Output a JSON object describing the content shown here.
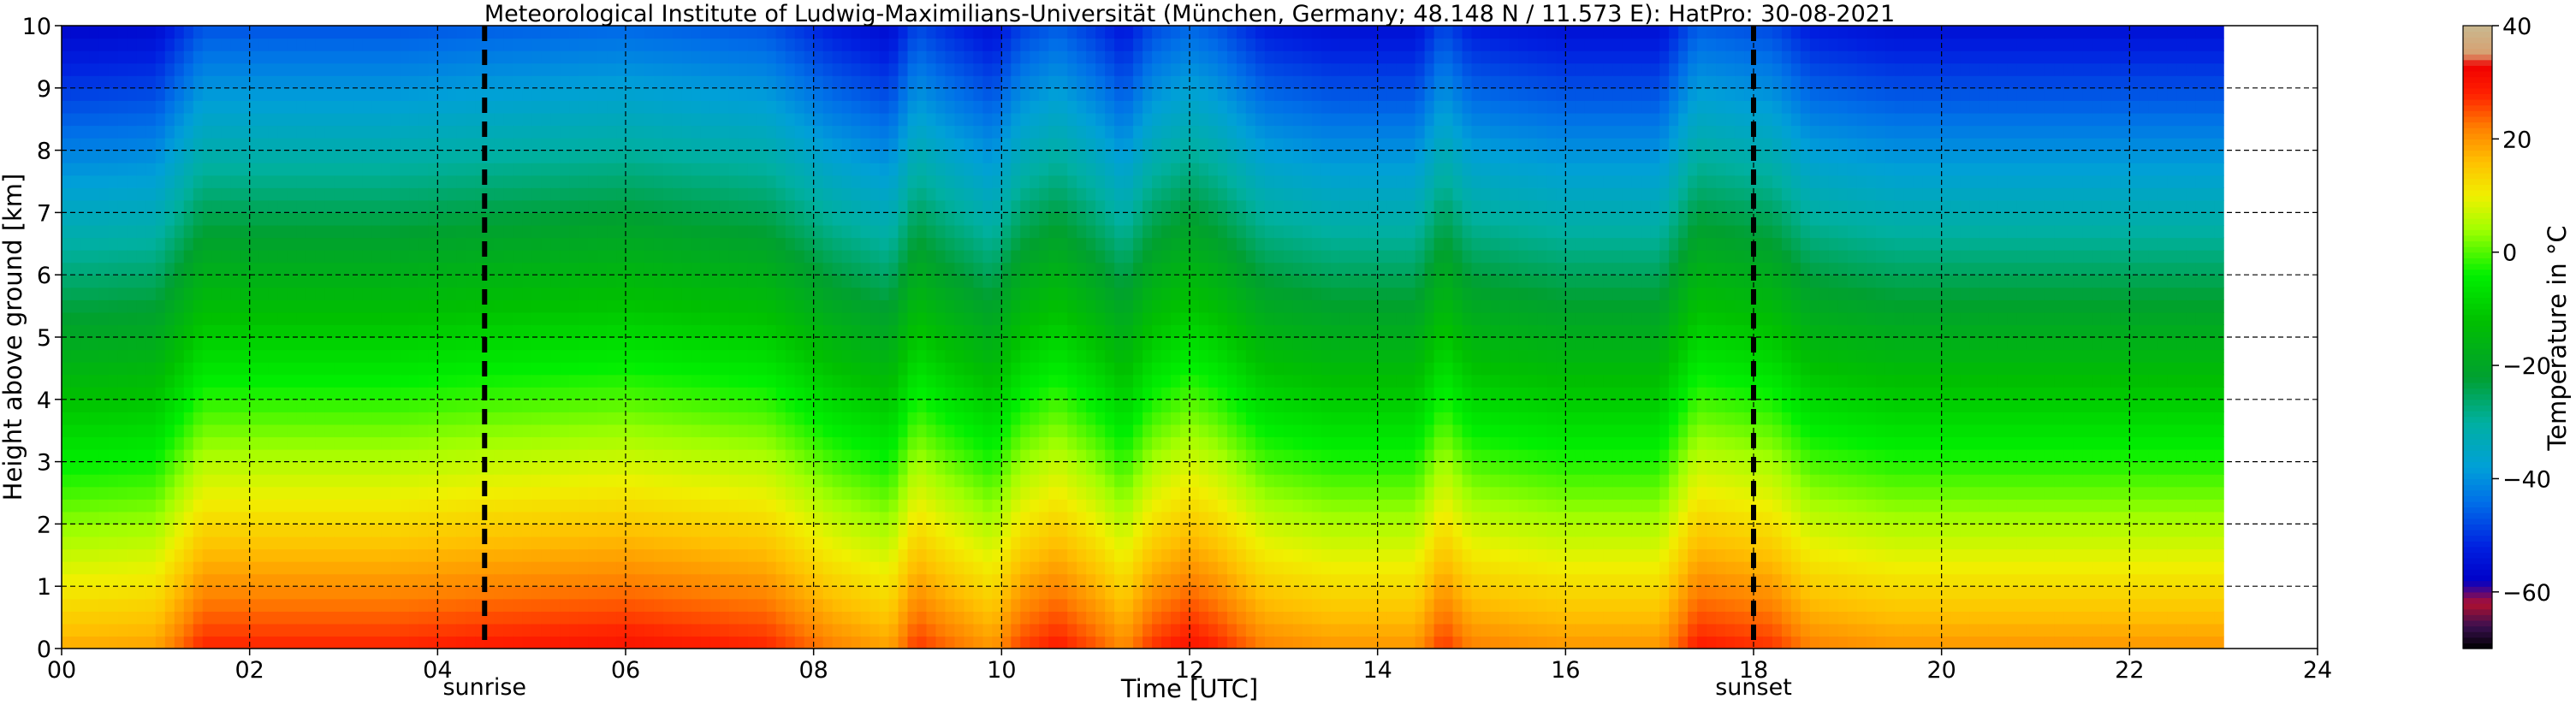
{
  "chart_data": {
    "type": "heatmap",
    "title": "Meteorological Institute of Ludwig-Maximilians-Universität (München, Germany; 48.148 N / 11.573 E):    HatPro: 30-08-2021",
    "xlabel": "Time [UTC]",
    "ylabel": "Height above ground [km]",
    "xlim": [
      0,
      24
    ],
    "ylim": [
      0,
      10
    ],
    "x_data_end": 23,
    "xticks": [
      0,
      2,
      4,
      6,
      8,
      10,
      12,
      14,
      16,
      18,
      20,
      22,
      24
    ],
    "xtick_labels": [
      "00",
      "02",
      "04",
      "06",
      "08",
      "10",
      "12",
      "14",
      "16",
      "18",
      "20",
      "22",
      "24"
    ],
    "yticks": [
      0,
      1,
      2,
      3,
      4,
      5,
      6,
      7,
      8,
      9,
      10
    ],
    "ytick_labels": [
      "0",
      "1",
      "2",
      "3",
      "4",
      "5",
      "6",
      "7",
      "8",
      "9",
      "10"
    ],
    "grid": true,
    "colorbar": {
      "label": "Temperature in °C",
      "range": [
        -70,
        40
      ],
      "ticks": [
        40,
        20,
        0,
        -20,
        -40,
        -60
      ],
      "tick_labels": [
        "40",
        "20",
        "0",
        "−20",
        "−40",
        "−60"
      ]
    },
    "annotations": [
      {
        "x": 4.5,
        "label": "sunrise",
        "style": "dashed"
      },
      {
        "x": 18.0,
        "label": "sunset",
        "style": "dashed"
      }
    ],
    "surface_temperature_profile": {
      "time": [
        0,
        1.0,
        1.5,
        3.5,
        4.5,
        6,
        7.5,
        8.2,
        8.8,
        9.1,
        9.4,
        9.9,
        10.2,
        10.6,
        11.0,
        11.3,
        11.6,
        12.0,
        12.3,
        12.8,
        13.5,
        14.4,
        14.7,
        15.0,
        16.0,
        17.0,
        17.4,
        17.8,
        18.2,
        18.6,
        19.5,
        21.0,
        23.0
      ],
      "t_surface_C": [
        18,
        19,
        28,
        28,
        29,
        30,
        28,
        22,
        19,
        27,
        24,
        20,
        26,
        29,
        25,
        21,
        27,
        30,
        28,
        22,
        20,
        20,
        27,
        22,
        20,
        20,
        29,
        28,
        27,
        22,
        20,
        20,
        20
      ]
    },
    "lapse_rate_C_per_km": 7.5,
    "colormap_stops": [
      {
        "value": -70,
        "color": "#000000"
      },
      {
        "value": -66,
        "color": "#3a1050"
      },
      {
        "value": -62,
        "color": "#b01030"
      },
      {
        "value": -58,
        "color": "#0000c8"
      },
      {
        "value": -52,
        "color": "#0020e0"
      },
      {
        "value": -44,
        "color": "#0070e8"
      },
      {
        "value": -38,
        "color": "#00a0d8"
      },
      {
        "value": -30,
        "color": "#00b0a0"
      },
      {
        "value": -22,
        "color": "#00a030"
      },
      {
        "value": -12,
        "color": "#00c000"
      },
      {
        "value": -4,
        "color": "#00f000"
      },
      {
        "value": 4,
        "color": "#a0ff00"
      },
      {
        "value": 10,
        "color": "#f0f000"
      },
      {
        "value": 16,
        "color": "#ffc000"
      },
      {
        "value": 22,
        "color": "#ff8000"
      },
      {
        "value": 28,
        "color": "#ff2000"
      },
      {
        "value": 33,
        "color": "#f00000"
      },
      {
        "value": 35,
        "color": "#d8a070"
      },
      {
        "value": 40,
        "color": "#c8b890"
      }
    ]
  }
}
